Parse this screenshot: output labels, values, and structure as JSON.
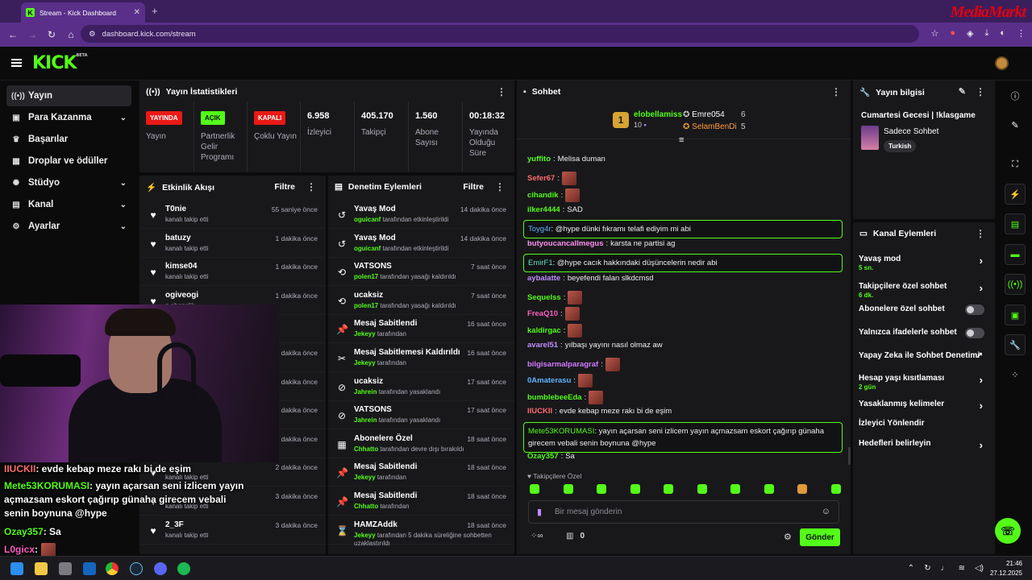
{
  "browser": {
    "tab_title": "Stream - Kick Dashboard",
    "url": "dashboard.kick.com/stream",
    "brand": "MediaMarkt"
  },
  "header": {
    "logo": "KICK",
    "logo_sup": "BETA"
  },
  "sidebar": {
    "items": [
      {
        "label": "Yayın",
        "icon": "broadcast-icon",
        "active": true
      },
      {
        "label": "Para Kazanma",
        "icon": "money-icon",
        "chevron": true
      },
      {
        "label": "Başarılar",
        "icon": "trophy-icon"
      },
      {
        "label": "Droplar ve ödüller",
        "icon": "gift-icon"
      },
      {
        "label": "Stüdyo",
        "icon": "studio-icon",
        "chevron": true
      },
      {
        "label": "Kanal",
        "icon": "channel-icon",
        "chevron": true
      },
      {
        "label": "Ayarlar",
        "icon": "gear-icon",
        "chevron": true
      }
    ]
  },
  "stats": {
    "title": "Yayın İstatistikleri",
    "cols": [
      {
        "badge": "YAYINDA",
        "caption": "Yayın"
      },
      {
        "badge": "AÇIK",
        "caption": "Partnerlik Gelir Programı"
      },
      {
        "badge": "KAPALI",
        "caption": "Çoklu Yayın"
      },
      {
        "value": "6.958",
        "caption": "İzleyici"
      },
      {
        "value": "405.170",
        "caption": "Takipçi"
      },
      {
        "value": "1.560",
        "caption": "Abone Sayısı"
      },
      {
        "value": "00:18:32",
        "caption": "Yayında Olduğu Süre"
      }
    ]
  },
  "activity": {
    "title": "Etkinlik Akışı",
    "filter": "Filtre",
    "rows": [
      {
        "name": "T0nie",
        "sub": "kanalı takip etti",
        "time": "55 saniye önce"
      },
      {
        "name": "batuzy",
        "sub": "kanalı takip etti",
        "time": "1 dakika önce"
      },
      {
        "name": "kimse04",
        "sub": "kanalı takip etti",
        "time": "1 dakika önce"
      },
      {
        "name": "ogiveogi",
        "sub": "n abonelik",
        "time": "1 dakika önce"
      },
      {
        "name": "",
        "sub": "",
        "time": ""
      },
      {
        "name": "",
        "sub": "",
        "time": "dakika önce"
      },
      {
        "name": "",
        "sub": "",
        "time": "dakika önce"
      },
      {
        "name": "",
        "sub": "",
        "time": "dakika önce"
      },
      {
        "name": "",
        "sub": "",
        "time": "dakika önce"
      },
      {
        "name": "",
        "sub": "kanalı takip etti",
        "time": "2 dakika önce"
      },
      {
        "name": "",
        "sub": "kanalı takip etti",
        "time": "3 dakika önce"
      },
      {
        "name": "2_3F",
        "sub": "kanalı takip etti",
        "time": "3 dakika önce"
      }
    ]
  },
  "moderation": {
    "title": "Denetim Eylemleri",
    "filter": "Filtre",
    "rows": [
      {
        "name": "Yavaş Mod",
        "user": "oguicanf",
        "sub": "tarafından etkinleştirildi",
        "time": "14 dakika önce"
      },
      {
        "name": "Yavaş Mod",
        "user": "oguicanf",
        "sub": "tarafından etkinleştirildi",
        "time": "14 dakika önce"
      },
      {
        "name": "VATSONS",
        "user": "polen17",
        "sub": "tarafından yasağı kaldırıldı",
        "time": "7 saat önce"
      },
      {
        "name": "ucaksiz",
        "user": "polen17",
        "sub": "tarafından yasağı kaldırıldı",
        "time": "7 saat önce"
      },
      {
        "name": "Mesaj Sabitlendi",
        "user": "Jekeyy",
        "sub": "tarafından",
        "time": "16 saat önce"
      },
      {
        "name": "Mesaj Sabitlemesi Kaldırıldı",
        "user": "Jekeyy",
        "sub": "tarafından",
        "time": "16 saat önce"
      },
      {
        "name": "ucaksiz",
        "user": "Jahrein",
        "sub": "tarafından yasaklandı",
        "time": "17 saat önce"
      },
      {
        "name": "VATSONS",
        "user": "Jahrein",
        "sub": "tarafından yasaklandı",
        "time": "17 saat önce"
      },
      {
        "name": "Abonelere Özel",
        "user": "Chhatto",
        "sub": "tarafından devre dışı bırakıldı",
        "time": "18 saat önce"
      },
      {
        "name": "Mesaj Sabitlendi",
        "user": "Jekeyy",
        "sub": "tarafından",
        "time": "18 saat önce"
      },
      {
        "name": "Mesaj Sabitlendi",
        "user": "Chhatto",
        "sub": "tarafından",
        "time": "18 saat önce"
      },
      {
        "name": "HAMZAddk",
        "user": "Jekeyy",
        "sub": "tarafından 5 dakika süreliğine sohbetten uzaklastırıldı",
        "time": "18 saat önce"
      }
    ]
  },
  "chat": {
    "title": "Sohbet",
    "top": [
      {
        "rank": "1",
        "name": "elobellamiss",
        "count": "10"
      },
      {
        "name": "Emre054",
        "count": "6"
      },
      {
        "name": "SelamBenDi",
        "count": "5"
      }
    ],
    "messages": [
      {
        "user": "yuffito",
        "color": "#53fc18",
        "text": "Melisa duman"
      },
      {
        "user": "Sefer67",
        "color": "#ff6b6b",
        "text": ""
      },
      {
        "user": "cihandik",
        "color": "#53fc18",
        "text": ""
      },
      {
        "user": "ilker4444",
        "color": "#53fc18",
        "text": "SAD"
      },
      {
        "user": "Toyg4r",
        "color": "#5fb5ff",
        "text": "@hype dünki fıkramı telafi ediyim mi abi",
        "hl": true
      },
      {
        "user": "butyoucancallmegus",
        "color": "#ff8ff0",
        "text": "karsta ne partisi ag"
      },
      {
        "user": "EmirF1",
        "color": "#5fe0c8",
        "text": "@hype cacık hakkındaki düşüncelerin nedir abi",
        "hl": true
      },
      {
        "user": "aybalatte",
        "color": "#c08bff",
        "text": "beyefendi falan slkdcmsd"
      },
      {
        "user": "Sequelss",
        "color": "#53fc18",
        "text": ""
      },
      {
        "user": "FreaQ10",
        "color": "#ff5dc0",
        "text": ""
      },
      {
        "user": "kaldirgac",
        "color": "#53fc18",
        "text": ""
      },
      {
        "user": "avarel51",
        "color": "#c08bff",
        "text": "yılbaşı yayını nasıl olmaz aw"
      },
      {
        "user": "bilgisarmalparagraf",
        "color": "#d17bff",
        "text": ""
      },
      {
        "user": "0Amaterasu",
        "color": "#5fb5ff",
        "text": ""
      },
      {
        "user": "bumblebeeEda",
        "color": "#53fc18",
        "text": ""
      },
      {
        "user": "IIUCKII",
        "color": "#ff6b6b",
        "text": "evde kebap meze rakı bi de eşim"
      },
      {
        "user": "Mete53KORUMASI",
        "color": "#53fc18",
        "text": "yayın açarsan seni izlicem yayın açmazsam eskort çağırıp günaha girecem vebali senin boynuna @hype",
        "hl": true
      },
      {
        "user": "Ozay357",
        "color": "#53fc18",
        "text": "Sa"
      }
    ],
    "followers_only": "Takipçilere Özel",
    "placeholder": "Bir mesaj gönderin",
    "send": "Gönder",
    "count": "0"
  },
  "stream_info": {
    "title": "Yayın bilgisi",
    "stream_title": "Cumartesi Gecesi | !klasgame",
    "category": "Sadece Sohbet",
    "tag": "Turkish"
  },
  "channel_actions": {
    "title": "Kanal Eylemleri",
    "items": [
      {
        "label": "Yavaş mod",
        "sub": "5 sn.",
        "type": "arrow"
      },
      {
        "label": "Takipçilere özel sohbet",
        "sub": "6 dk.",
        "type": "arrow"
      },
      {
        "label": "Abonelere özel sohbet",
        "type": "toggle"
      },
      {
        "label": "Yalnızca ifadelerle sohbet",
        "type": "toggle"
      },
      {
        "label": "Yapay Zeka ile Sohbet Denetimi",
        "type": "external"
      },
      {
        "label": "Hesap yaşı kısıtlaması",
        "sub": "2 gün",
        "type": "arrow"
      },
      {
        "label": "Yasaklanmış kelimeler",
        "type": "arrow"
      },
      {
        "label": "İzleyici Yönlendir",
        "type": "none"
      },
      {
        "label": "Hedefleri belirleyin",
        "type": "arrow"
      }
    ]
  },
  "overlay": {
    "lines": [
      {
        "user": "IIUCKII",
        "color": "#ff6b6b",
        "text": ": evde kebap meze rakı bi de eşim"
      },
      {
        "user": "Mete53KORUMASI",
        "color": "#53fc18",
        "text": ": yayın açarsan seni izlicem yayın açmazsam eskort çağırıp günaha girecem vebali senin boynuna @hype"
      },
      {
        "user": "Ozay357",
        "color": "#53fc18",
        "text": ": Sa"
      },
      {
        "user": "L0gicx",
        "color": "#ff5dc0",
        "text": ":"
      }
    ]
  },
  "taskbar": {
    "time": "21:46",
    "date": "27.12.2025"
  }
}
